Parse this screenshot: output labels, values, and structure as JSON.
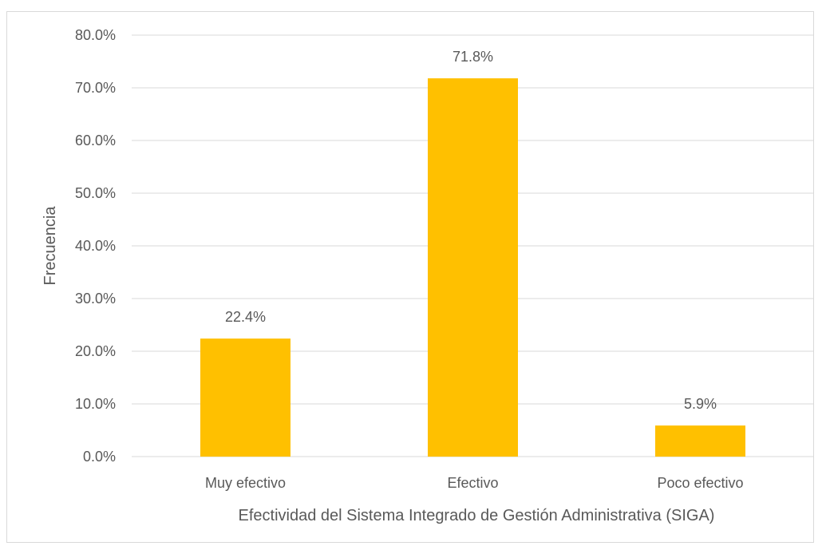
{
  "chart_data": {
    "type": "bar",
    "title": "",
    "xlabel": "Efectividad del Sistema Integrado de Gestión Administrativa (SIGA)",
    "ylabel": "Frecuencia",
    "categories": [
      "Muy efectivo",
      "Efectivo",
      "Poco efectivo"
    ],
    "values": [
      22.4,
      71.8,
      5.9
    ],
    "data_labels": [
      "22.4%",
      "71.8%",
      "5.9%"
    ],
    "ylim": [
      0,
      80
    ],
    "yticks": [
      0,
      10,
      20,
      30,
      40,
      50,
      60,
      70,
      80
    ],
    "ytick_labels": [
      "0.0%",
      "10.0%",
      "20.0%",
      "30.0%",
      "40.0%",
      "50.0%",
      "60.0%",
      "70.0%",
      "80.0%"
    ],
    "grid": true,
    "legend": "none",
    "bar_color": "#FFC000"
  }
}
